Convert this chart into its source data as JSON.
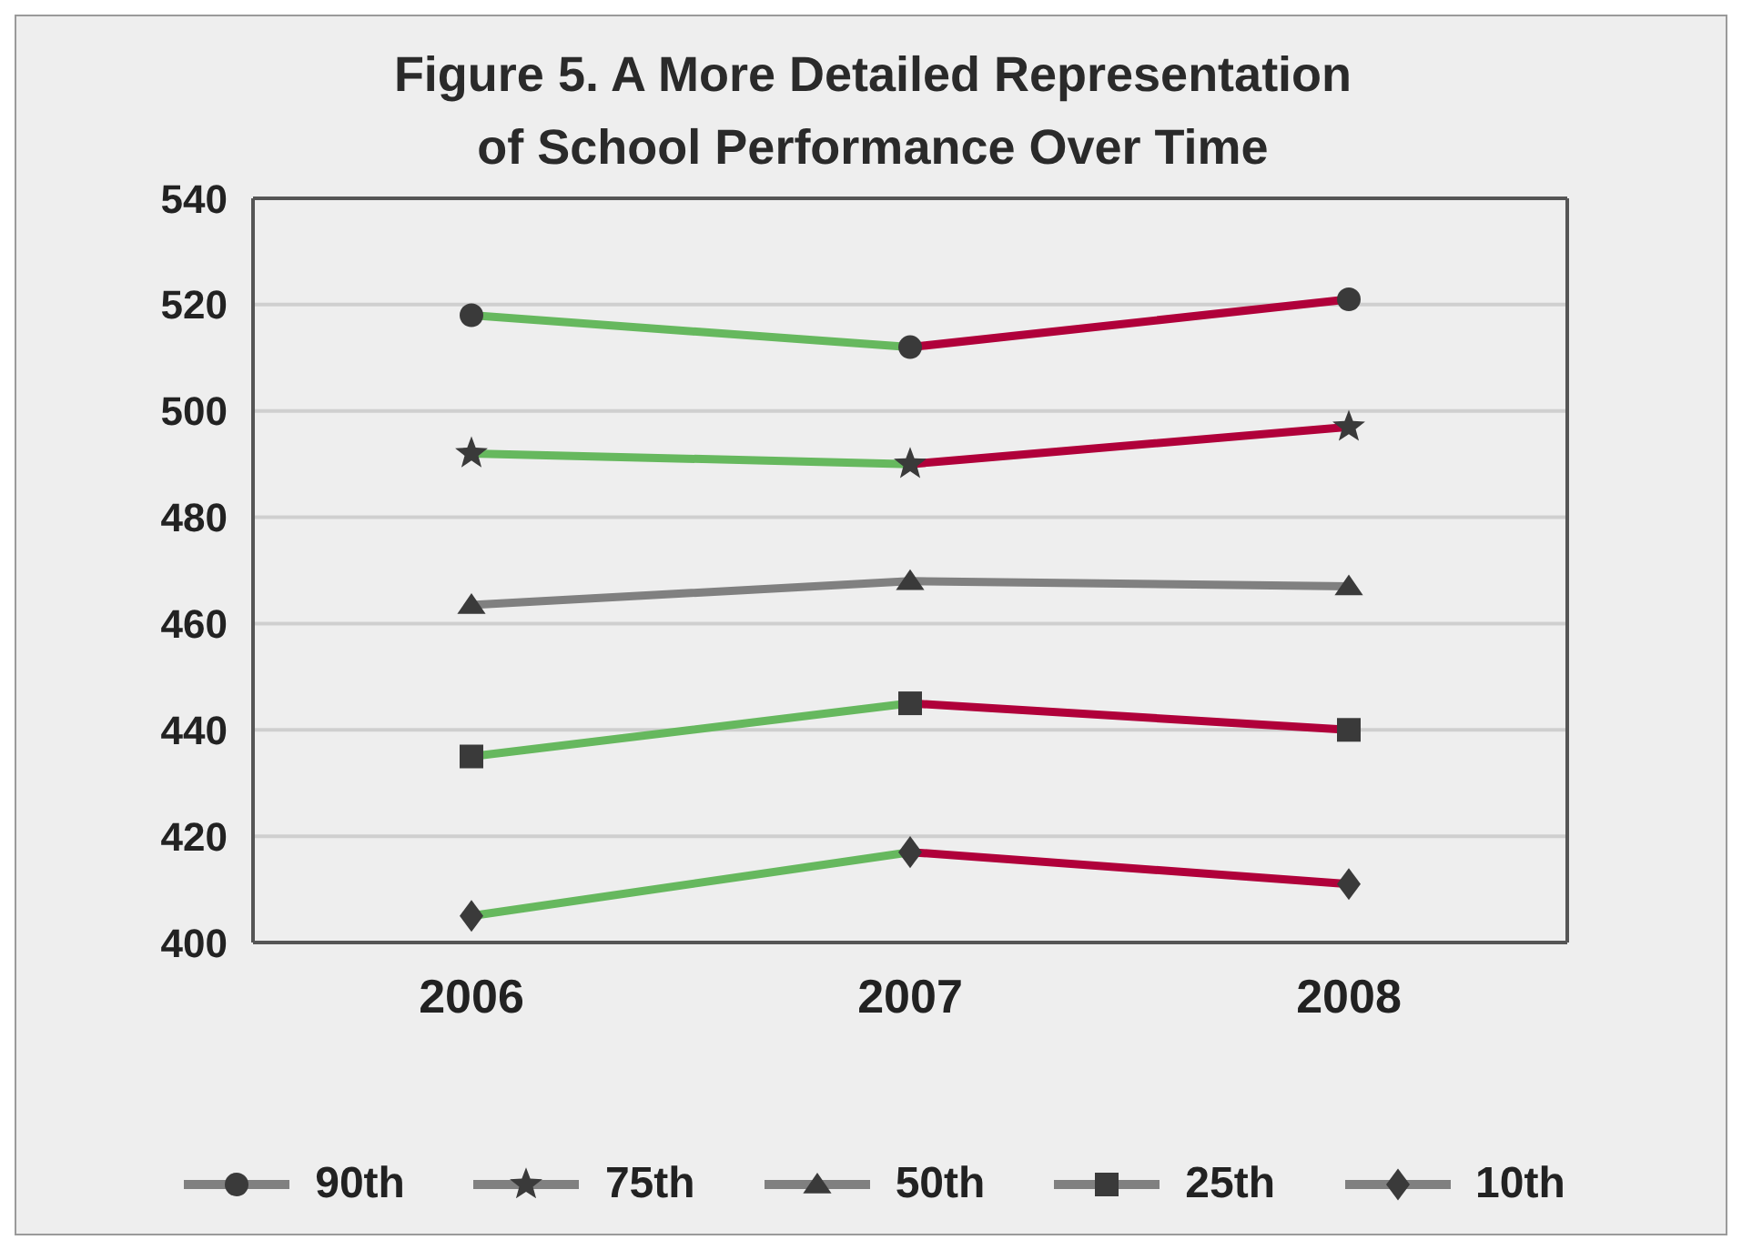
{
  "chart_data": {
    "type": "line",
    "title": "Figure 5. A More Detailed Representation\nof School Performance Over Time",
    "categories": [
      "2006",
      "2007",
      "2008"
    ],
    "series": [
      {
        "color": "#66b85e",
        "values": [
          518,
          512,
          null
        ]
      },
      {
        "color": "#b0003a",
        "values": [
          null,
          512,
          521
        ]
      },
      {
        "color": "#66b85e",
        "values": [
          492,
          490,
          null
        ]
      },
      {
        "color": "#b0003a",
        "values": [
          null,
          490,
          497
        ]
      },
      {
        "color": "#66b85e",
        "values": [
          435,
          445,
          null
        ]
      },
      {
        "color": "#b0003a",
        "values": [
          null,
          445,
          440
        ]
      },
      {
        "color": "#66b85e",
        "values": [
          405,
          417,
          null
        ]
      },
      {
        "color": "#b0003a",
        "values": [
          null,
          417,
          411
        ]
      },
      {
        "type": "scatter",
        "name": "90th",
        "color": "#3a3a3a",
        "marker": "circle",
        "values": [
          518,
          512,
          521
        ]
      },
      {
        "type": "scatter",
        "name": "75th",
        "color": "#3a3a3a",
        "marker": "star",
        "values": [
          492,
          490,
          497
        ]
      },
      {
        "color": "#808080",
        "values": [
          463.5,
          468,
          467
        ],
        "name": "50th",
        "marker": "triangle"
      },
      {
        "type": "scatter",
        "name": "25th",
        "color": "#3a3a3a",
        "marker": "square",
        "values": [
          435,
          445,
          440
        ]
      },
      {
        "type": "scatter",
        "name": "10th",
        "color": "#3a3a3a",
        "marker": "diamond",
        "values": [
          405,
          417,
          411
        ]
      }
    ],
    "ylim": [
      400,
      540
    ],
    "yticks": [
      400,
      420,
      440,
      460,
      480,
      500,
      520,
      540
    ],
    "grid": "y",
    "legend": "bottom"
  }
}
